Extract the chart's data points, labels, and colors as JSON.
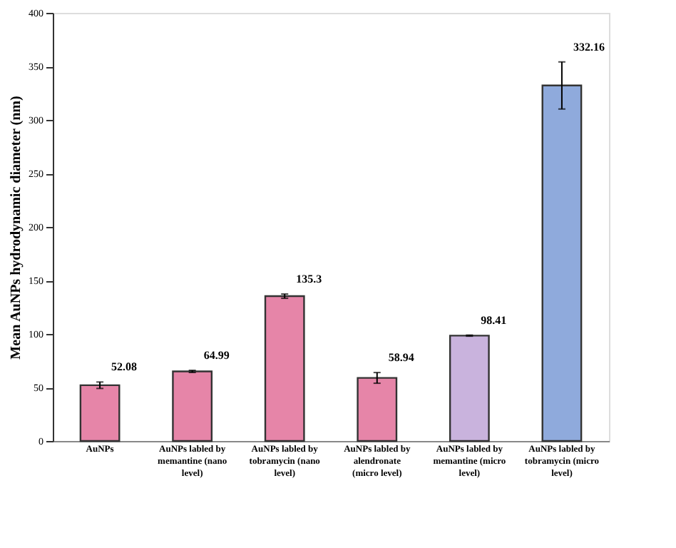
{
  "chart_data": {
    "type": "bar",
    "ylabel": "Mean AuNPs hydrodynamic diameter (nm)",
    "categories": [
      "AuNPs",
      "AuNPs labled by memantine (nano level)",
      "AuNPs labled by tobramycin (nano level)",
      "AuNPs labled by alendronate (micro level)",
      "AuNPs labled by memantine  (micro level)",
      "AuNPs labled by tobramycin (micro level)"
    ],
    "values": [
      52.08,
      64.99,
      135.3,
      58.94,
      98.41,
      332.16
    ],
    "errors": [
      3,
      1,
      2,
      5,
      0.5,
      22
    ],
    "colors": [
      "#e685a8",
      "#e685a8",
      "#e685a8",
      "#e685a8",
      "#c9b3dd",
      "#8faadc"
    ],
    "data_labels": true,
    "ylim": [
      0,
      400
    ],
    "yticks": [
      0,
      50,
      100,
      150,
      200,
      250,
      300,
      350,
      400
    ],
    "grid": false
  }
}
